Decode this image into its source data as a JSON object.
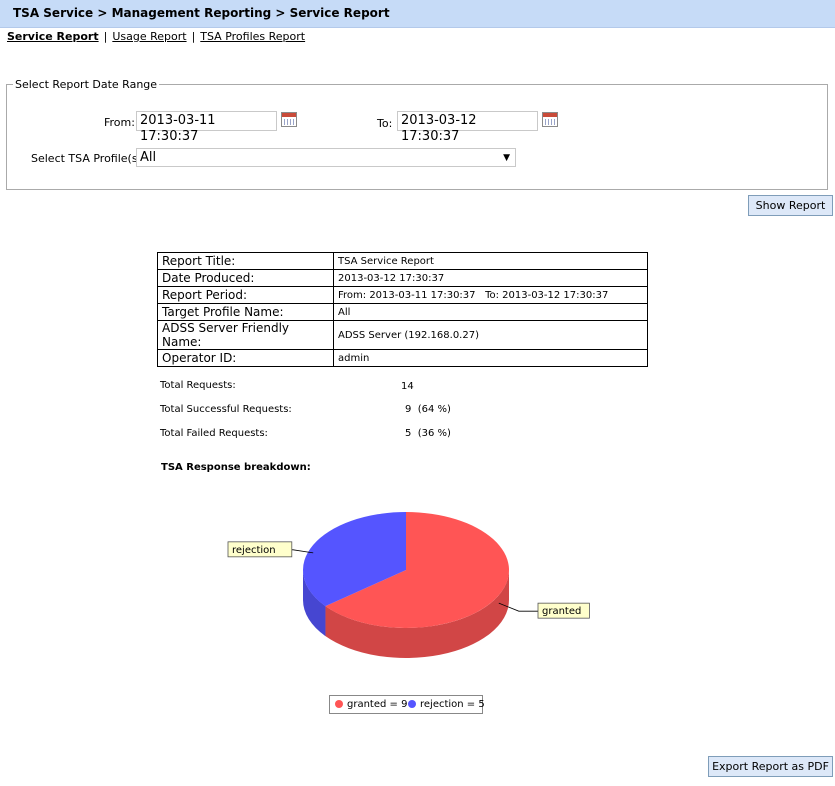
{
  "header": {
    "title": "TSA Service > Management Reporting > Service Report"
  },
  "tabs": [
    {
      "label": "Service Report",
      "active": true
    },
    {
      "label": "Usage Report",
      "active": false
    },
    {
      "label": "TSA Profiles Report",
      "active": false
    }
  ],
  "tab_separator": "|",
  "date_range": {
    "legend": "Select Report Date Range",
    "from_label": "From:",
    "from_value": "2013-03-11 17:30:37",
    "to_label": "To:",
    "to_value": "2013-03-12 17:30:37",
    "profile_label": "Select TSA Profile(s):",
    "profile_value": "All"
  },
  "buttons": {
    "show_report": "Show Report",
    "export_pdf": "Export Report as PDF"
  },
  "report_info": [
    {
      "key": "Report Title:",
      "value": "TSA Service Report"
    },
    {
      "key": "Date Produced:",
      "value": "2013-03-12 17:30:37"
    },
    {
      "key": "Report Period:",
      "value": "From: 2013-03-11 17:30:37   To: 2013-03-12 17:30:37"
    },
    {
      "key": "Target Profile Name:",
      "value": "All"
    },
    {
      "key": "ADSS Server Friendly Name:",
      "value": "ADSS Server (192.168.0.27)"
    },
    {
      "key": "Operator ID:",
      "value": "admin"
    }
  ],
  "stats": [
    {
      "label": "Total Requests:",
      "value": "14"
    },
    {
      "label": "Total Successful Requests:",
      "value": "9  (64 %)"
    },
    {
      "label": "Total Failed Requests:",
      "value": "5  (36 %)"
    }
  ],
  "breakdown_title": "TSA Response breakdown:",
  "chart_data": {
    "type": "pie",
    "categories": [
      "granted",
      "rejection"
    ],
    "values": [
      9,
      5
    ],
    "colors": [
      "#ff5555",
      "#5555ff"
    ],
    "legend": [
      "granted = 9",
      "rejection = 5"
    ],
    "legend_position": "bottom",
    "style": "3d"
  }
}
